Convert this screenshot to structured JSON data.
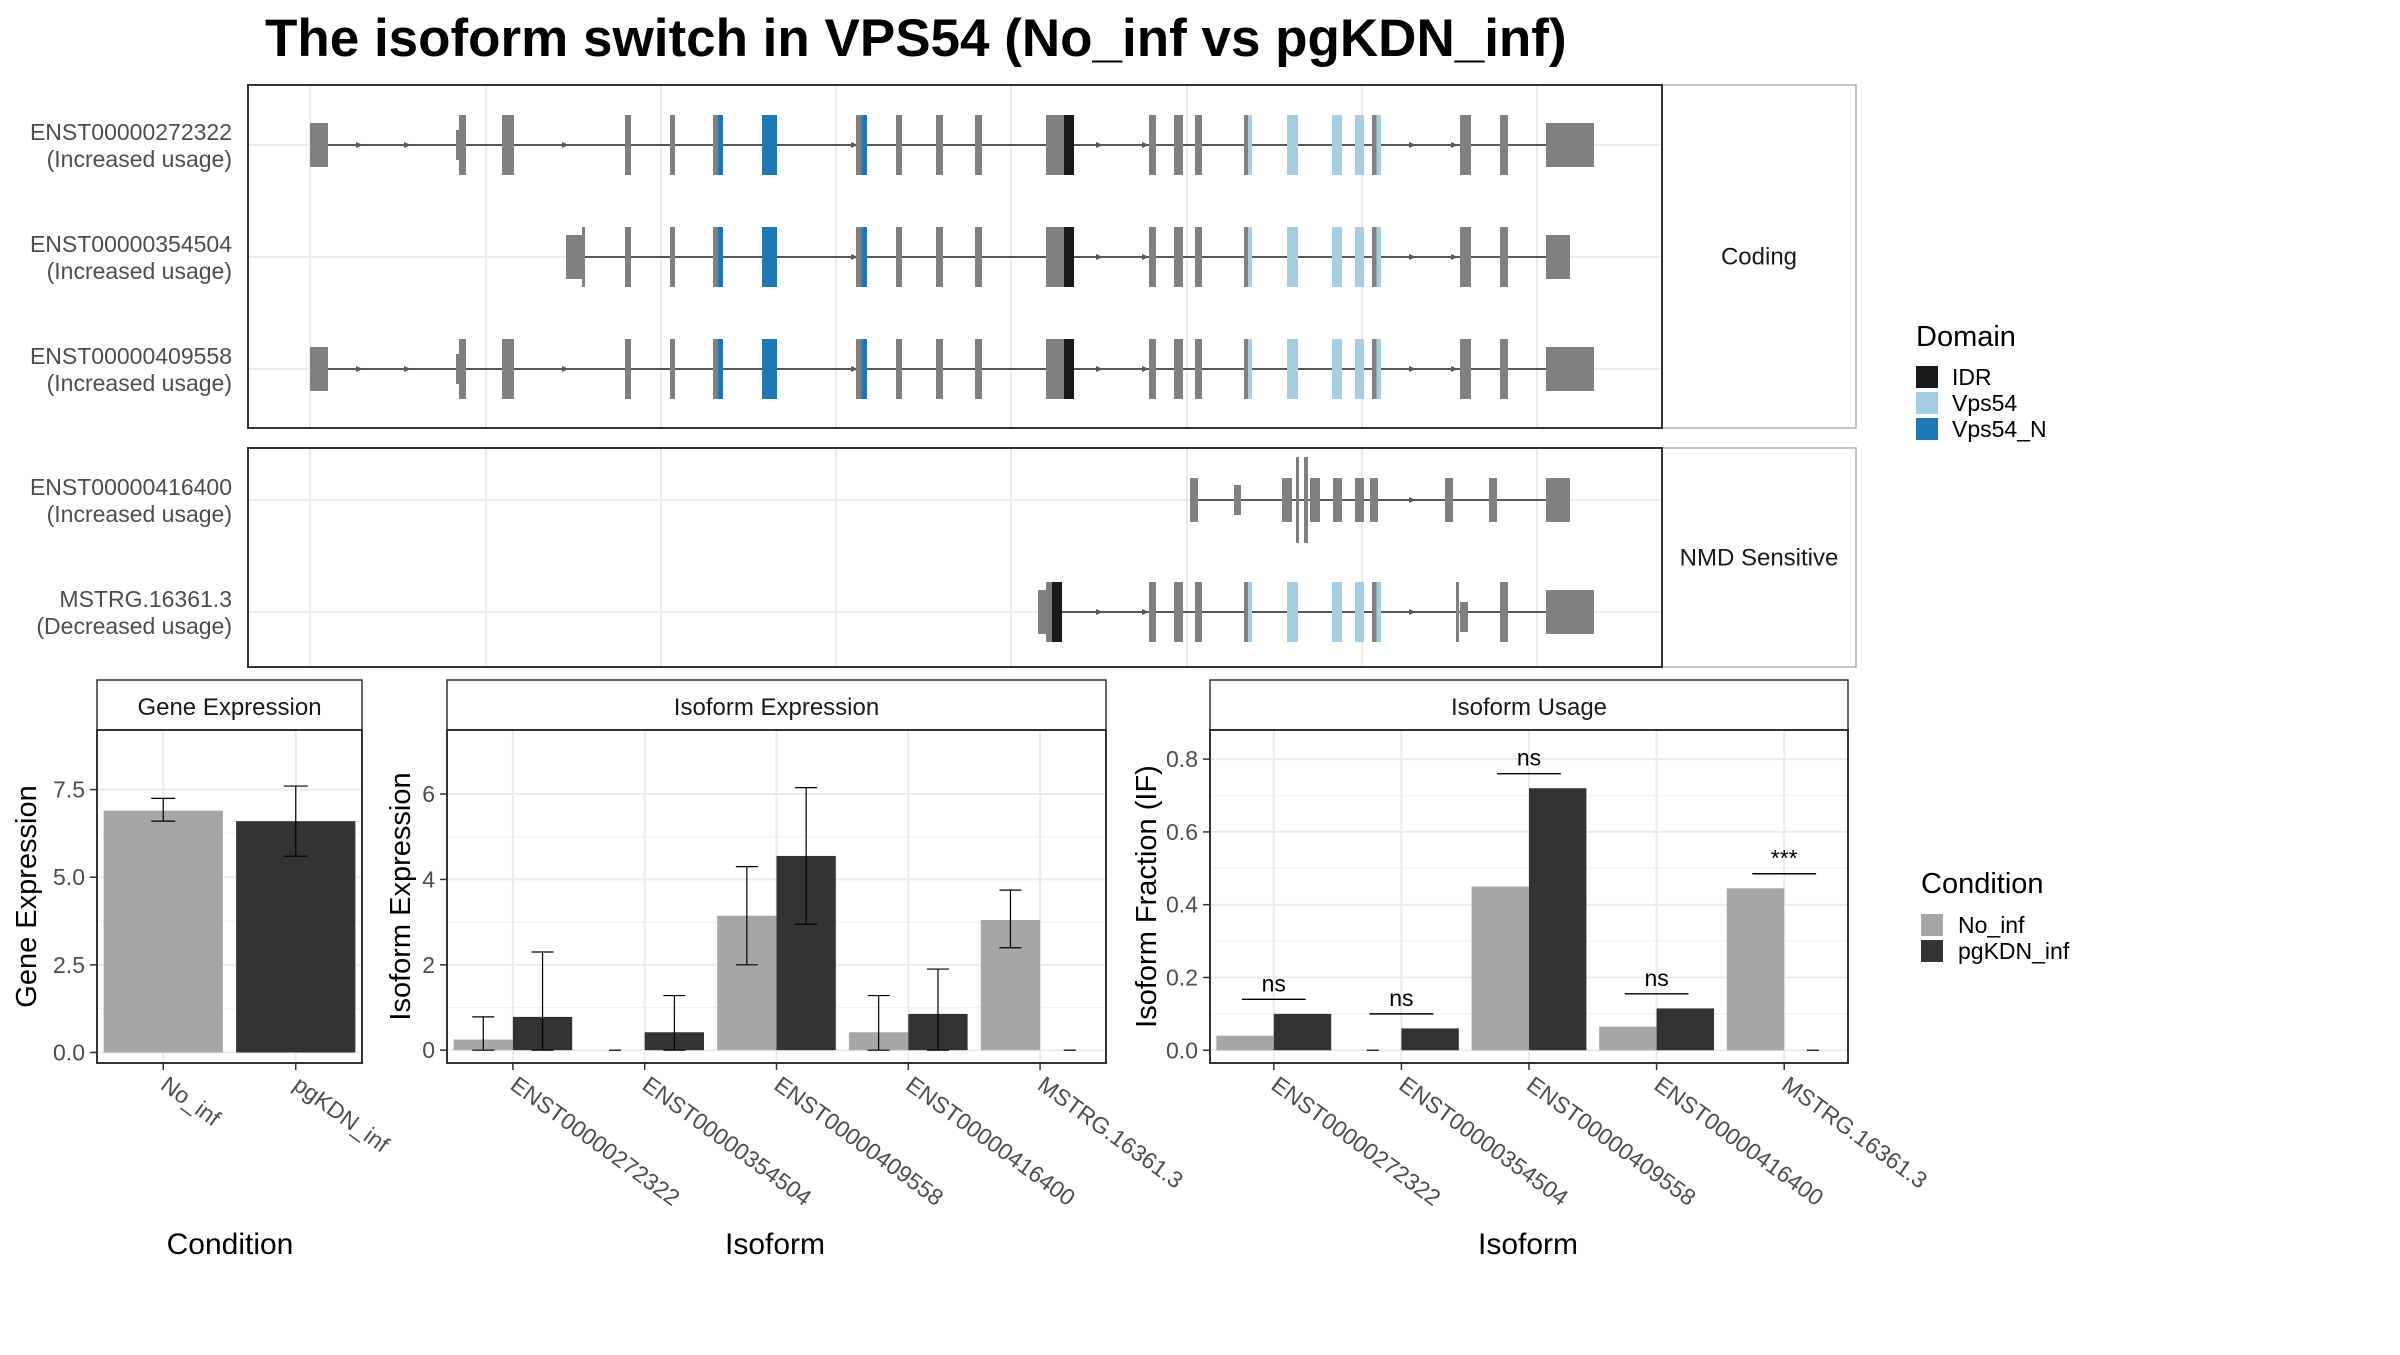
{
  "title": "The isoform switch in VPS54 (No_inf vs pgKDN_inf)",
  "colors": {
    "intron": "#595959",
    "exon": "#808080",
    "idr": "#1a1a1a",
    "vps54": "#a6cee3",
    "vps54_n": "#1f78b4",
    "no_inf": "#a6a6a6",
    "pgkdn_inf": "#333333",
    "grid": "#ebebeb",
    "strip": "#ffffff",
    "panel_border": "#333333"
  },
  "structure": {
    "groups": [
      {
        "label": "Coding",
        "isoforms": [
          {
            "id": "ENST00000272322",
            "usage": "(Increased usage)",
            "start": 200,
            "exon_start_index": 0,
            "utr_end": "big"
          },
          {
            "id": "ENST00000354504",
            "usage": "(Increased usage)",
            "start": 366,
            "exon_start_index": 3,
            "utr_end": "small"
          },
          {
            "id": "ENST00000409558",
            "usage": "(Increased usage)",
            "start": 200,
            "exon_start_index": 0,
            "utr_end": "big"
          }
        ]
      },
      {
        "label": "NMD Sensitive",
        "isoforms": [
          {
            "id": "ENST00000416400",
            "usage": "(Increased usage)",
            "start": 773,
            "exon_start_index": 0,
            "utr_end": "small"
          },
          {
            "id": "MSTRG.16361.3",
            "usage": "(Decreased usage)",
            "start": 673,
            "exon_start_index": 0,
            "utr_end": "big"
          }
        ]
      }
    ],
    "legend_title": "Domain",
    "legend": [
      {
        "label": "IDR",
        "color": "#1a1a1a"
      },
      {
        "label": "Vps54",
        "color": "#a6cee3"
      },
      {
        "label": "Vps54_N",
        "color": "#1f78b4"
      }
    ]
  },
  "chart_data": [
    {
      "type": "bar",
      "panel": "Gene Expression",
      "xlabel": "Condition",
      "ylabel": "Gene Expression",
      "categories": [
        "No_inf",
        "pgKDN_inf"
      ],
      "values": [
        6.9,
        6.6
      ],
      "errors": [
        [
          6.6,
          7.25
        ],
        [
          5.6,
          7.6
        ]
      ],
      "yticks": [
        0.0,
        2.5,
        5.0,
        7.5
      ],
      "ytick_labels": [
        "0.0",
        "2.5",
        "5.0",
        "7.5"
      ],
      "ylim": [
        -0.3,
        9.2
      ]
    },
    {
      "type": "bar",
      "panel": "Isoform Expression",
      "xlabel": "Isoform",
      "ylabel": "Isoform Expression",
      "categories": [
        "ENST00000272322",
        "ENST00000354504",
        "ENST00000409558",
        "ENST00000416400",
        "MSTRG.16361.3"
      ],
      "series": [
        {
          "name": "No_inf",
          "values": [
            0.25,
            0.0,
            3.15,
            0.42,
            3.05
          ],
          "errors": [
            [
              0.0,
              0.78
            ],
            [
              0.0,
              0.0
            ],
            [
              2.0,
              4.3
            ],
            [
              0.0,
              1.28
            ],
            [
              2.4,
              3.75
            ]
          ]
        },
        {
          "name": "pgKDN_inf",
          "values": [
            0.78,
            0.42,
            4.55,
            0.85,
            0.0
          ],
          "errors": [
            [
              0.0,
              2.3
            ],
            [
              0.0,
              1.28
            ],
            [
              2.95,
              6.15
            ],
            [
              0.0,
              1.9
            ],
            [
              0.0,
              0.0
            ]
          ]
        }
      ],
      "yticks": [
        0,
        2,
        4,
        6
      ],
      "ytick_labels": [
        "0",
        "2",
        "4",
        "6"
      ],
      "ylim": [
        -0.3,
        7.5
      ]
    },
    {
      "type": "bar",
      "panel": "Isoform Usage",
      "xlabel": "Isoform",
      "ylabel": "Isoform Fraction (IF)",
      "categories": [
        "ENST00000272322",
        "ENST00000354504",
        "ENST00000409558",
        "ENST00000416400",
        "MSTRG.16361.3"
      ],
      "series": [
        {
          "name": "No_inf",
          "values": [
            0.04,
            0.0,
            0.45,
            0.065,
            0.445
          ]
        },
        {
          "name": "pgKDN_inf",
          "values": [
            0.1,
            0.06,
            0.72,
            0.115,
            0.0
          ]
        }
      ],
      "significance": [
        {
          "label": "ns",
          "y": 0.14
        },
        {
          "label": "ns",
          "y": 0.1
        },
        {
          "label": "ns",
          "y": 0.76
        },
        {
          "label": "ns",
          "y": 0.155
        },
        {
          "label": "***",
          "y": 0.485
        }
      ],
      "yticks": [
        0.0,
        0.2,
        0.4,
        0.6,
        0.8
      ],
      "ytick_labels": [
        "0.0",
        "0.2",
        "0.4",
        "0.6",
        "0.8"
      ],
      "ylim": [
        -0.035,
        0.88
      ]
    }
  ],
  "condition_legend": {
    "title": "Condition",
    "items": [
      {
        "label": "No_inf",
        "color": "#a6a6a6"
      },
      {
        "label": "pgKDN_inf",
        "color": "#333333"
      }
    ]
  }
}
